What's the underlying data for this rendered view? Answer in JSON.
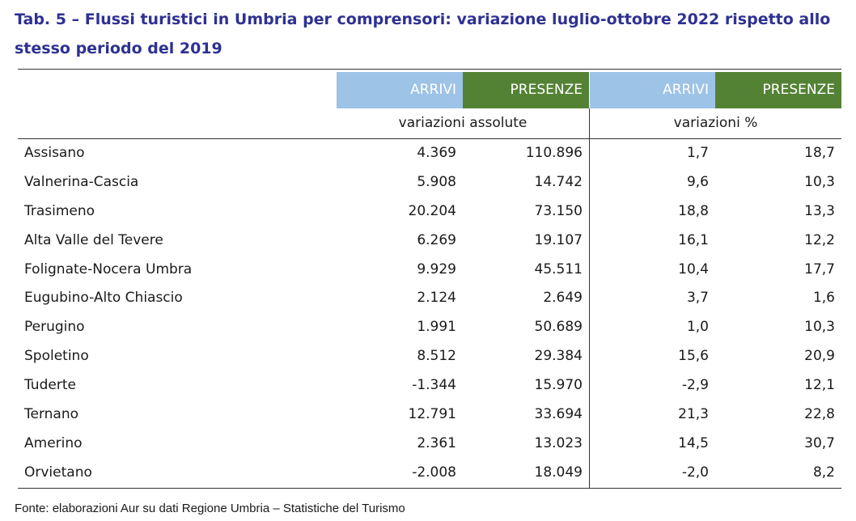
{
  "title": "Tab. 5 – Flussi turistici in Umbria per comprensori: variazione luglio-ottobre 2022 rispetto allo stesso periodo del 2019",
  "header": {
    "col1": "ARRIVI",
    "col2": "PRESENZE",
    "col3": "ARRIVI",
    "col4": "PRESENZE",
    "group_abs": "variazioni assolute",
    "group_pct": "variazioni %"
  },
  "colors": {
    "arrivi": "#9dc3e6",
    "presenze": "#548235",
    "title": "#2e3192"
  },
  "rows": [
    {
      "name": "Assisano",
      "arrivi_abs": "4.369",
      "presenze_abs": "110.896",
      "arrivi_pct": "1,7",
      "presenze_pct": "18,7"
    },
    {
      "name": "Valnerina-Cascia",
      "arrivi_abs": "5.908",
      "presenze_abs": "14.742",
      "arrivi_pct": "9,6",
      "presenze_pct": "10,3"
    },
    {
      "name": "Trasimeno",
      "arrivi_abs": "20.204",
      "presenze_abs": "73.150",
      "arrivi_pct": "18,8",
      "presenze_pct": "13,3"
    },
    {
      "name": "Alta Valle del Tevere",
      "arrivi_abs": "6.269",
      "presenze_abs": "19.107",
      "arrivi_pct": "16,1",
      "presenze_pct": "12,2"
    },
    {
      "name": "Folignate-Nocera Umbra",
      "arrivi_abs": "9.929",
      "presenze_abs": "45.511",
      "arrivi_pct": "10,4",
      "presenze_pct": "17,7"
    },
    {
      "name": "Eugubino-Alto Chiascio",
      "arrivi_abs": "2.124",
      "presenze_abs": "2.649",
      "arrivi_pct": "3,7",
      "presenze_pct": "1,6"
    },
    {
      "name": "Perugino",
      "arrivi_abs": "1.991",
      "presenze_abs": "50.689",
      "arrivi_pct": "1,0",
      "presenze_pct": "10,3"
    },
    {
      "name": "Spoletino",
      "arrivi_abs": "8.512",
      "presenze_abs": "29.384",
      "arrivi_pct": "15,6",
      "presenze_pct": "20,9"
    },
    {
      "name": "Tuderte",
      "arrivi_abs": "-1.344",
      "presenze_abs": "15.970",
      "arrivi_pct": "-2,9",
      "presenze_pct": "12,1"
    },
    {
      "name": "Ternano",
      "arrivi_abs": "12.791",
      "presenze_abs": "33.694",
      "arrivi_pct": "21,3",
      "presenze_pct": "22,8"
    },
    {
      "name": "Amerino",
      "arrivi_abs": "2.361",
      "presenze_abs": "13.023",
      "arrivi_pct": "14,5",
      "presenze_pct": "30,7"
    },
    {
      "name": "Orvietano",
      "arrivi_abs": "-2.008",
      "presenze_abs": "18.049",
      "arrivi_pct": "-2,0",
      "presenze_pct": "8,2"
    }
  ],
  "source": "Fonte: elaborazioni Aur su dati Regione Umbria – Statistiche del Turismo"
}
